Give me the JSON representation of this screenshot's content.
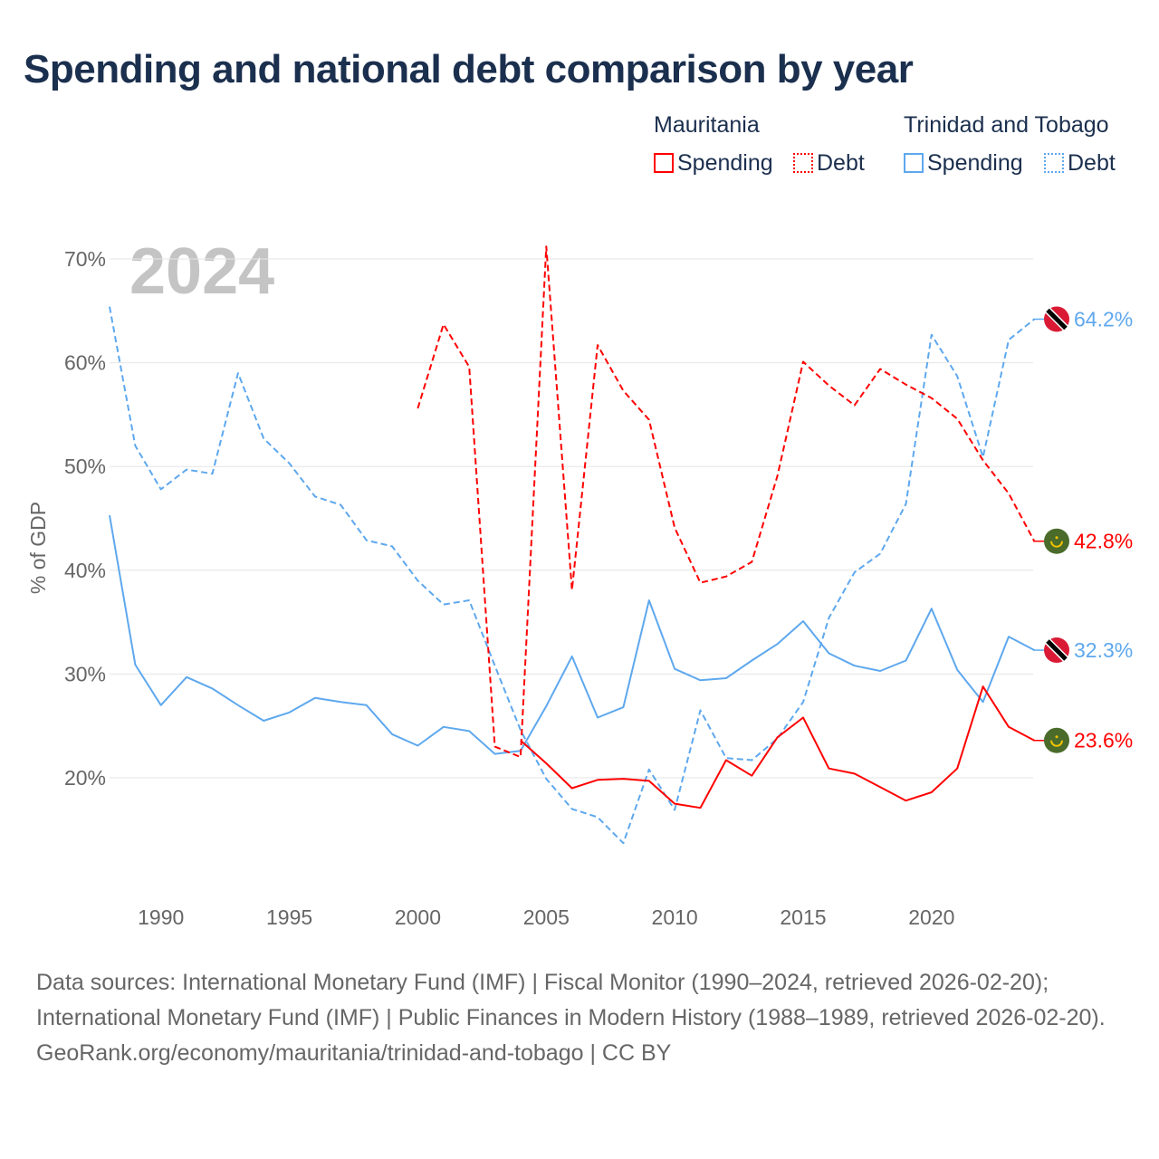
{
  "title": "Spending and national debt comparison by year",
  "legend": {
    "groups": [
      {
        "country": "Mauritania",
        "color": "#ff0000",
        "items": [
          "Spending",
          "Debt"
        ]
      },
      {
        "country": "Trinidad and Tobago",
        "color": "#5ea8ee",
        "items": [
          "Spending",
          "Debt"
        ]
      }
    ]
  },
  "footer": {
    "line1": "Data sources: International Monetary Fund (IMF) | Fiscal Monitor (1990–2024, retrieved 2026-02-20); International Monetary Fund (IMF) | Public Finances in Modern History (1988–1989, retrieved 2026-02-20).",
    "line2": "GeoRank.org/economy/mauritania/trinidad-and-tobago | CC BY"
  },
  "chart_data": {
    "type": "line",
    "title": "Spending and national debt comparison by year",
    "year_label": "2024",
    "ylabel": "% of GDP",
    "xlabel": "",
    "ylim": [
      10,
      72
    ],
    "xlim": [
      1988,
      2024
    ],
    "yticks": [
      20,
      30,
      40,
      50,
      60,
      70
    ],
    "ytick_labels": [
      "20%",
      "30%",
      "40%",
      "50%",
      "60%",
      "70%"
    ],
    "xticks": [
      1990,
      1995,
      2000,
      2005,
      2010,
      2015,
      2020
    ],
    "xtick_labels": [
      "1990",
      "1995",
      "2000",
      "2005",
      "2010",
      "2015",
      "2020"
    ],
    "grid": true,
    "series": [
      {
        "name": "Trinidad and Tobago Spending",
        "color": "#5ea8ee",
        "dash": false,
        "start": 1988,
        "flag": "tt",
        "end_label": "32.3%",
        "values": [
          45.3,
          30.9,
          27.0,
          29.7,
          28.6,
          27.0,
          25.5,
          26.3,
          27.7,
          27.3,
          27.0,
          24.2,
          23.1,
          24.9,
          24.5,
          22.3,
          22.6,
          26.9,
          31.7,
          25.8,
          26.8,
          37.1,
          30.5,
          29.4,
          29.6,
          31.3,
          32.9,
          35.1,
          32.0,
          30.8,
          30.3,
          31.3,
          36.3,
          30.4,
          27.3,
          33.6,
          32.3
        ]
      },
      {
        "name": "Trinidad and Tobago Debt",
        "color": "#5ea8ee",
        "dash": true,
        "start": 1988,
        "flag": "tt",
        "end_label": "64.2%",
        "values": [
          65.4,
          52.0,
          47.8,
          49.7,
          49.3,
          59.0,
          52.7,
          50.3,
          47.1,
          46.3,
          42.9,
          42.3,
          39.0,
          36.7,
          37.1,
          30.8,
          24.6,
          19.9,
          17.0,
          16.2,
          13.7,
          20.8,
          16.9,
          26.5,
          21.9,
          21.7,
          23.8,
          27.3,
          35.4,
          39.8,
          41.6,
          46.4,
          62.7,
          58.7,
          50.9,
          62.2,
          64.2
        ]
      },
      {
        "name": "Mauritania Spending",
        "color": "#ff0000",
        "dash": false,
        "start": 2004,
        "flag": "mr",
        "end_label": "23.6%",
        "values": [
          23.6,
          21.4,
          19.0,
          19.8,
          19.9,
          19.7,
          17.5,
          17.1,
          21.7,
          20.2,
          23.9,
          25.8,
          20.9,
          20.4,
          19.1,
          17.8,
          18.6,
          20.9,
          28.8,
          24.9,
          23.6
        ]
      },
      {
        "name": "Mauritania Debt",
        "color": "#ff0000",
        "dash": true,
        "start": 2000,
        "flag": "mr",
        "end_label": "42.8%",
        "values": [
          55.6,
          63.7,
          59.6,
          23.0,
          22.0,
          71.2,
          38.1,
          61.7,
          57.3,
          54.5,
          44.1,
          38.8,
          39.4,
          40.8,
          49.1,
          60.1,
          57.8,
          55.9,
          59.4,
          57.9,
          56.6,
          54.6,
          50.6,
          47.4,
          42.8
        ]
      }
    ]
  }
}
